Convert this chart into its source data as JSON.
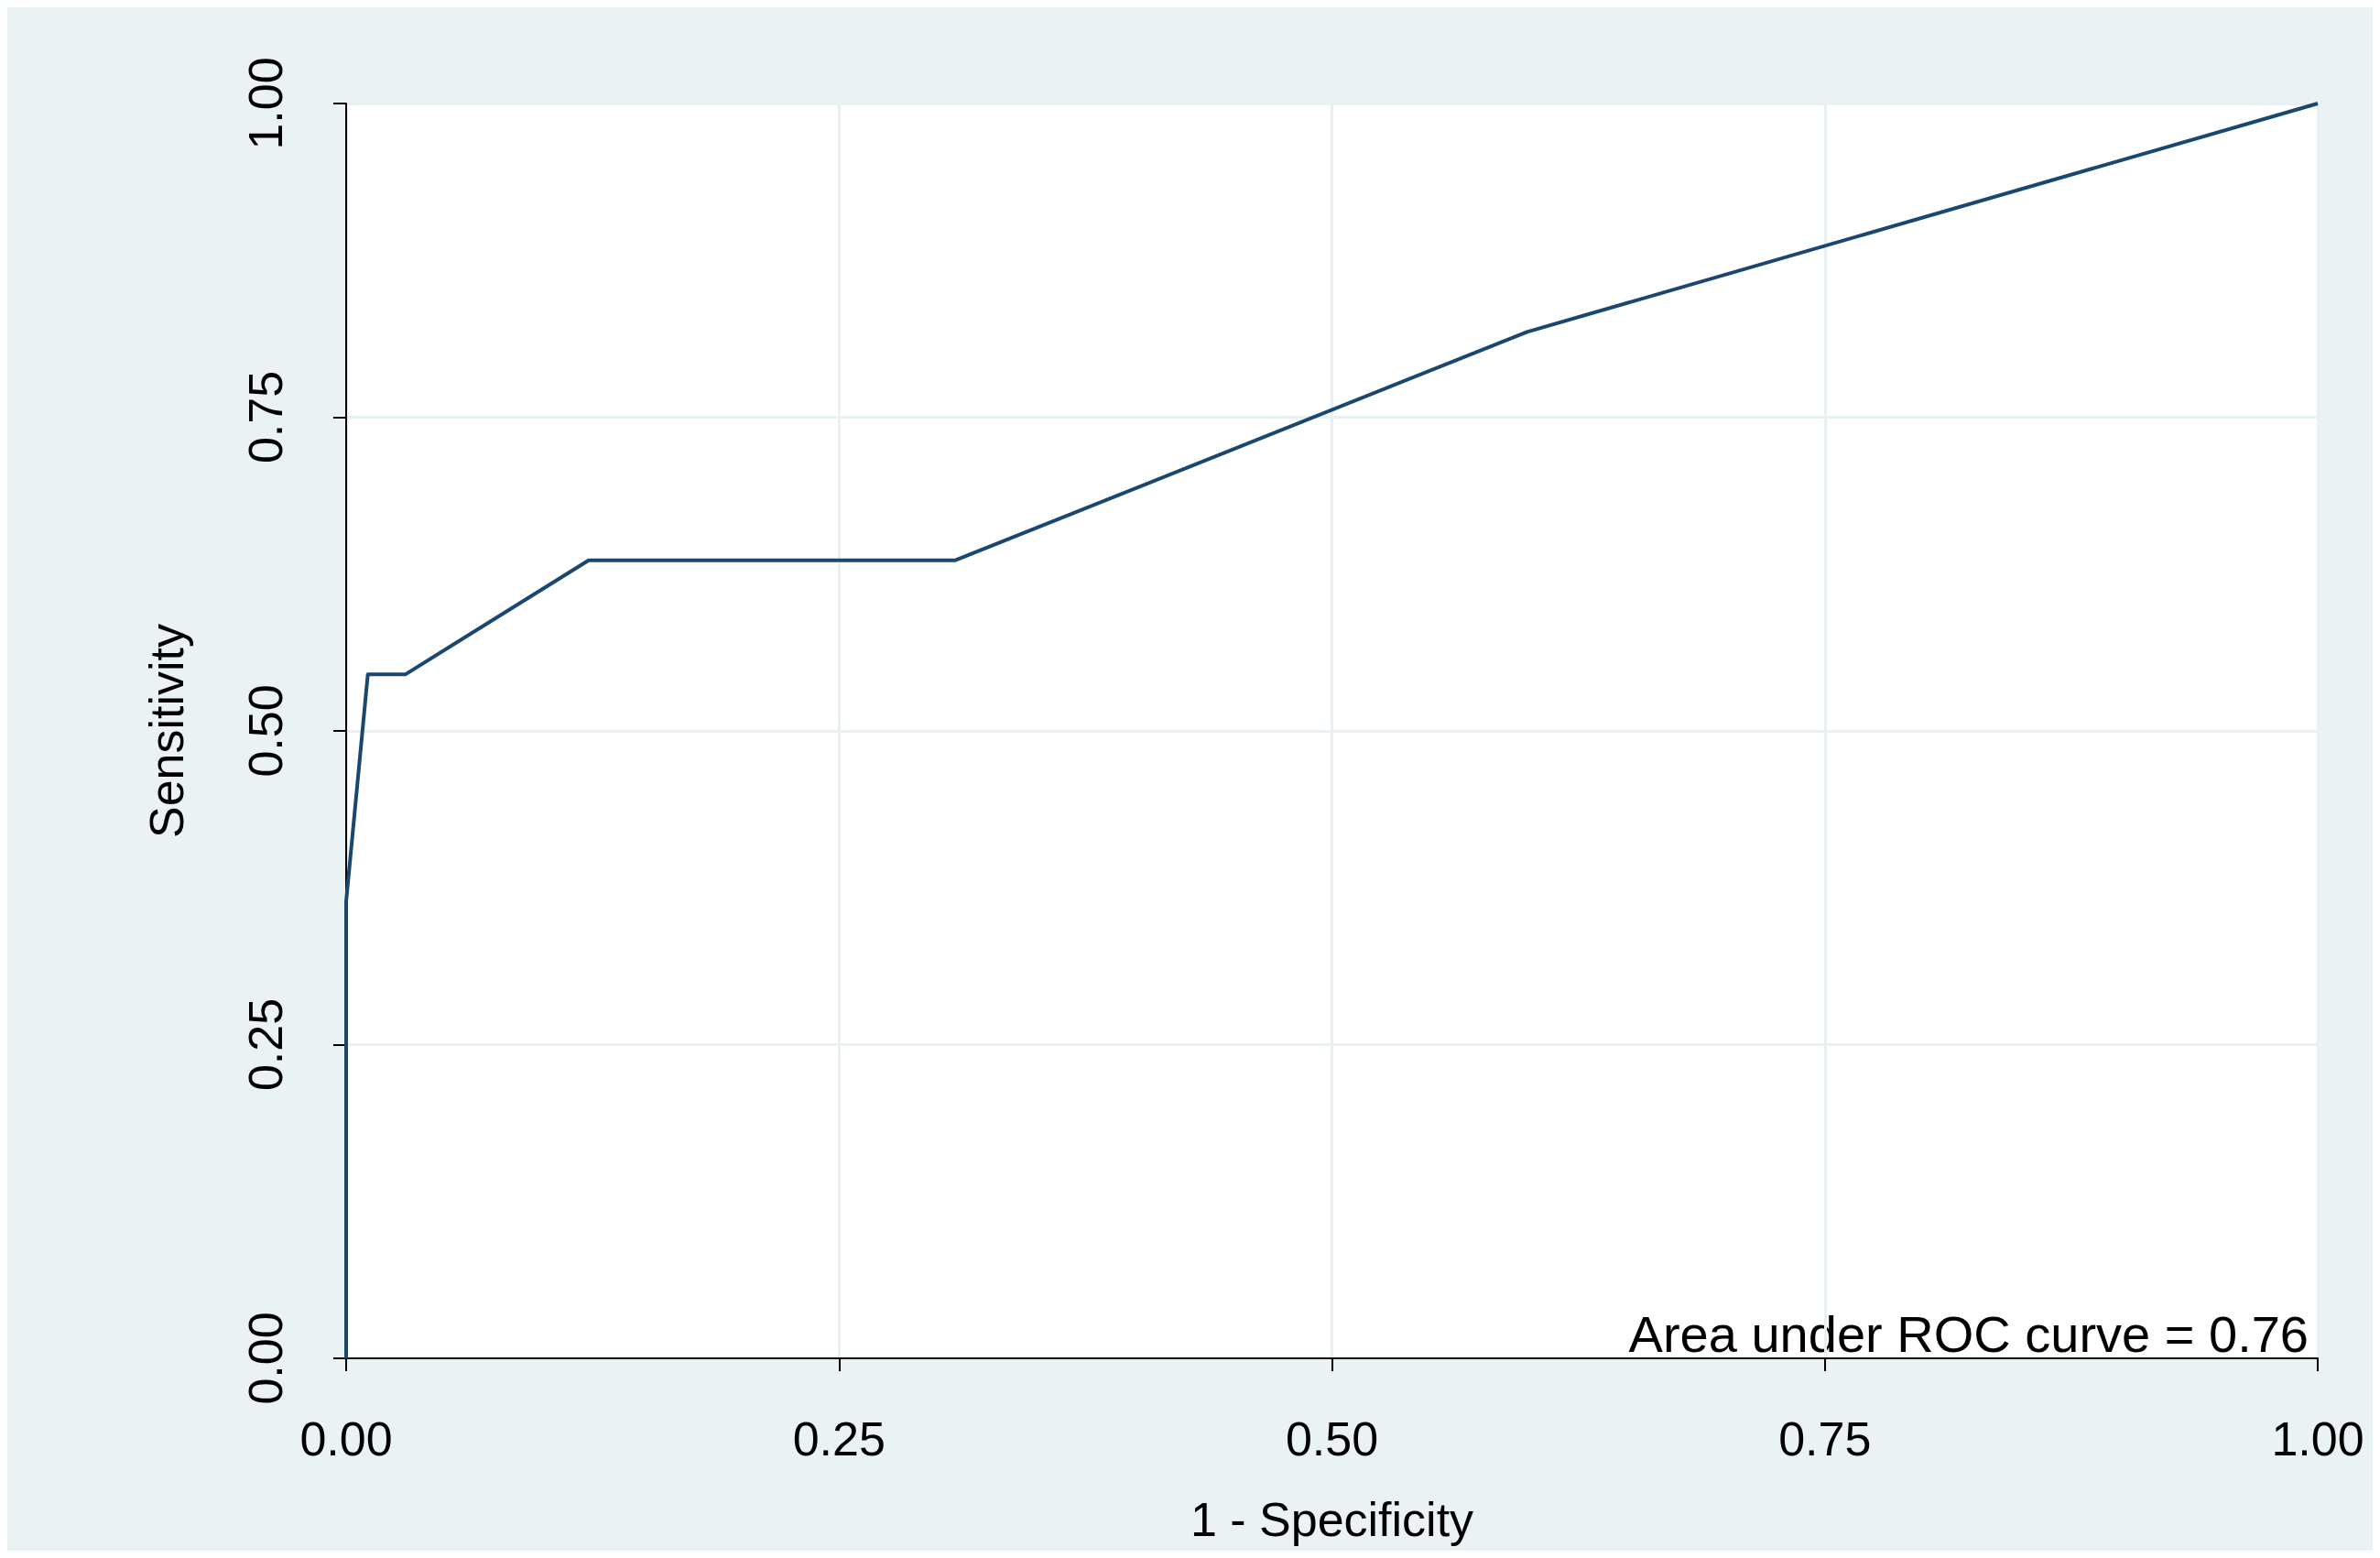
{
  "chart_data": {
    "type": "line",
    "xlabel": "1 - Specificity",
    "ylabel": "Sensitivity",
    "x": [
      0,
      0,
      0.011,
      0.03,
      0.123,
      0.309,
      0.599,
      1
    ],
    "series": [
      {
        "color": "#1a476f",
        "values": [
          0,
          0.364,
          0.545,
          0.545,
          0.636,
          0.636,
          0.818,
          1
        ]
      }
    ],
    "xlim": [
      0,
      1
    ],
    "xticks": [
      {
        "value": 0,
        "label": "0.00"
      },
      {
        "value": 0.25,
        "label": "0.25"
      },
      {
        "value": 0.5,
        "label": "0.50"
      },
      {
        "value": 0.75,
        "label": "0.75"
      },
      {
        "value": 1,
        "label": "1.00"
      }
    ],
    "ylim": [
      0,
      1
    ],
    "yticks": [
      {
        "value": 0,
        "label": "0.00"
      },
      {
        "value": 0.25,
        "label": "0.25"
      },
      {
        "value": 0.5,
        "label": "0.50"
      },
      {
        "value": 0.75,
        "label": "0.75"
      },
      {
        "value": 1,
        "label": "1.00"
      }
    ],
    "grid": true,
    "marker": "none",
    "line_style": "solid",
    "annotations": [
      "Area under ROC curve = 0.76"
    ]
  }
}
